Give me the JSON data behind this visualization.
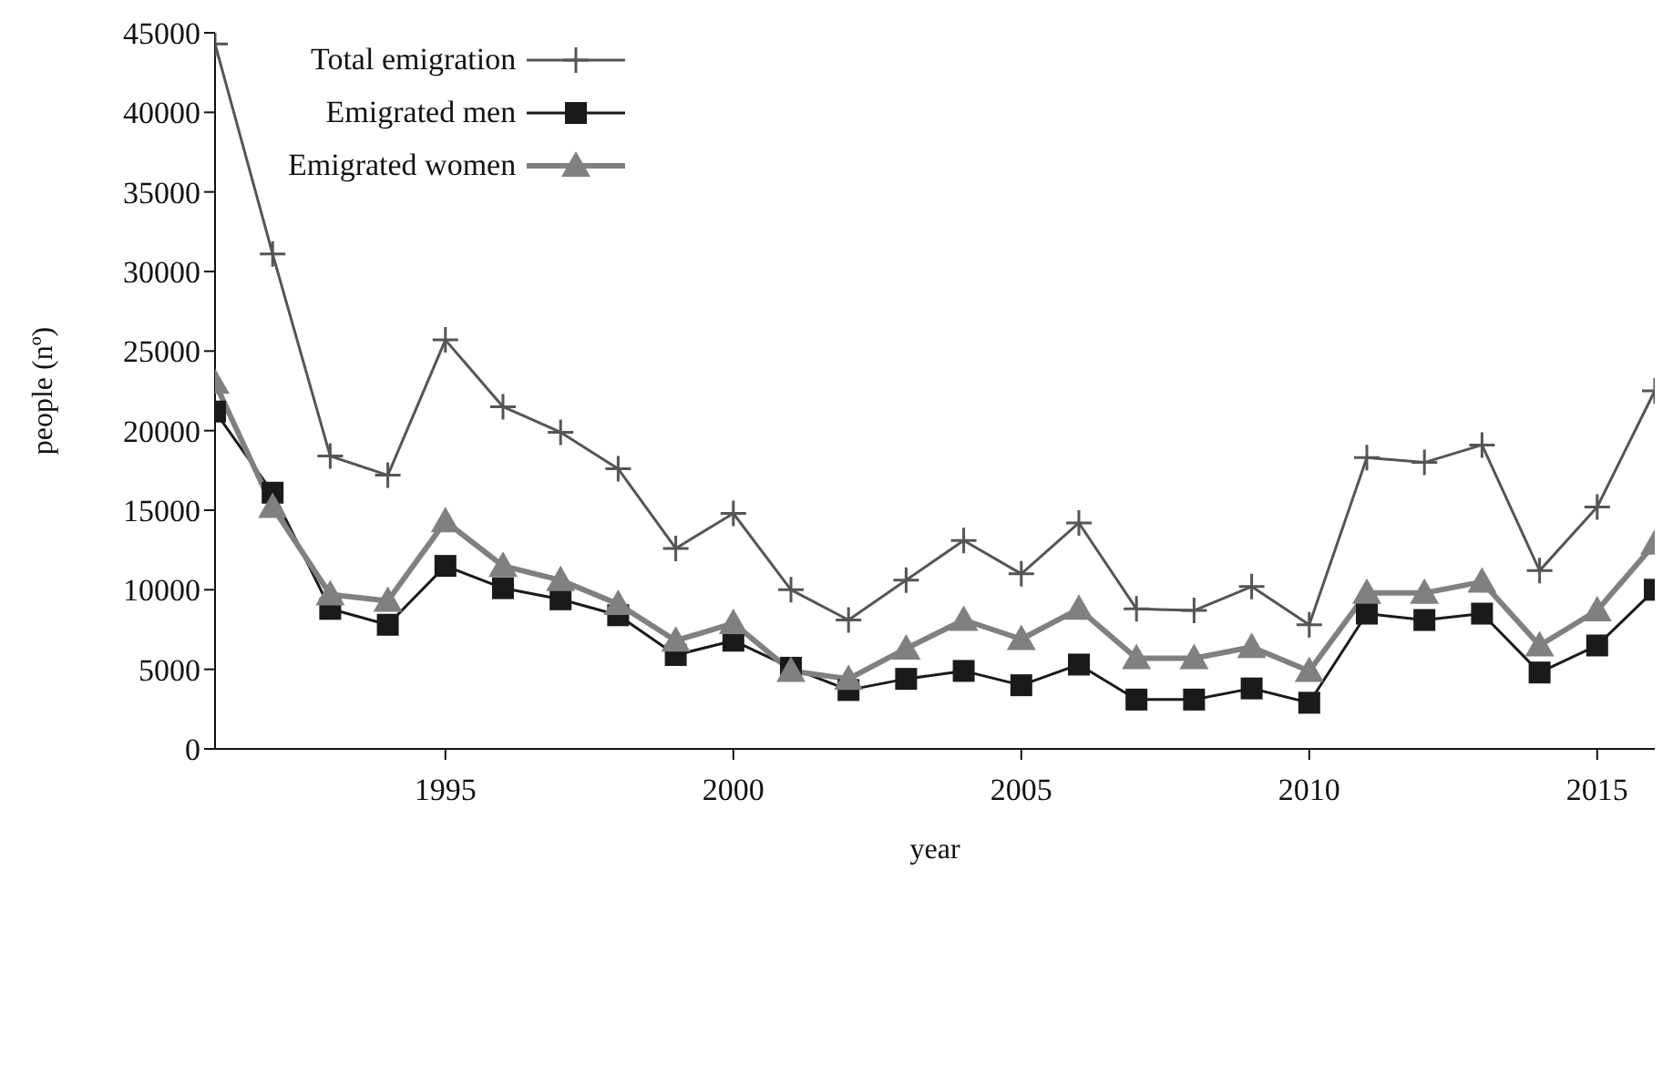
{
  "chart_data": {
    "type": "line",
    "xlabel": "year",
    "ylabel": "people (nº)",
    "x": [
      1991,
      1992,
      1993,
      1994,
      1995,
      1996,
      1997,
      1998,
      1999,
      2000,
      2001,
      2002,
      2003,
      2004,
      2005,
      2006,
      2007,
      2008,
      2009,
      2010,
      2011,
      2012,
      2013,
      2014,
      2015,
      2016
    ],
    "series": [
      {
        "name": "Total emigration",
        "color": "#555555",
        "marker": "cross",
        "values": [
          44300,
          31100,
          18400,
          17200,
          25700,
          21500,
          19900,
          17600,
          12600,
          14800,
          10000,
          8100,
          10600,
          13100,
          11000,
          14200,
          8800,
          8700,
          10200,
          7800,
          18300,
          18000,
          19100,
          11200,
          15200,
          22500
        ]
      },
      {
        "name": "Emigrated men",
        "color": "#1a1a1a",
        "marker": "square",
        "values": [
          21200,
          16100,
          8800,
          7800,
          11500,
          10100,
          9400,
          8400,
          5900,
          6800,
          5100,
          3700,
          4400,
          4900,
          4000,
          5300,
          3100,
          3100,
          3800,
          2900,
          8500,
          8100,
          8500,
          4800,
          6500,
          10000
        ]
      },
      {
        "name": "Emigrated women",
        "color": "#808080",
        "marker": "triangle",
        "values": [
          23000,
          15200,
          9700,
          9300,
          14300,
          11500,
          10600,
          9100,
          6800,
          7900,
          4900,
          4400,
          6300,
          8100,
          6900,
          8800,
          5700,
          5700,
          6400,
          4900,
          9800,
          9800,
          10500,
          6500,
          8700,
          12900
        ]
      }
    ],
    "xlim": [
      1991,
      2016
    ],
    "xticks": [
      1995,
      2000,
      2005,
      2010,
      2015
    ],
    "ylim": [
      0,
      45000
    ],
    "yticks": [
      0,
      5000,
      10000,
      15000,
      20000,
      25000,
      30000,
      35000,
      40000,
      45000
    ],
    "grid": false,
    "legend": "top left"
  }
}
